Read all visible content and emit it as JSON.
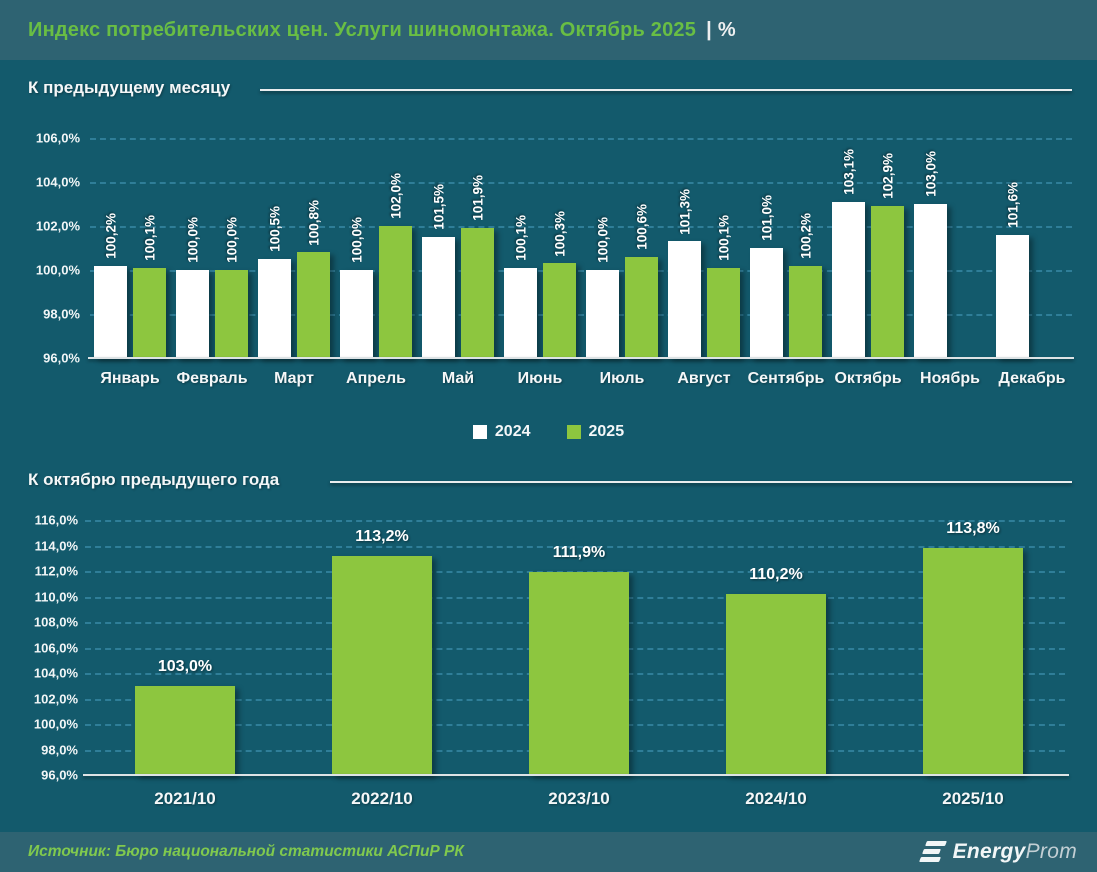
{
  "header": {
    "title": "Индекс потребительских цен. Услуги шиномонтажа. Октябрь 2025",
    "divider": "|",
    "unit": "%"
  },
  "sections": {
    "monthly_title": "К предыдущему месяцу",
    "yearly_title": "К октябрю предыдущего года"
  },
  "legend": [
    {
      "label": "2024",
      "color": "#FFFFFF"
    },
    {
      "label": "2025",
      "color": "#8DC63F"
    }
  ],
  "footer": {
    "source": "Источник: Бюро национальной статистики АСПиР РК",
    "logo_bold": "Energy",
    "logo_light": "Prom"
  },
  "colors": {
    "background": "#135A6C",
    "band": "#2E6372",
    "title_green": "#69BE44",
    "bar_green": "#8DC63F",
    "bar_white": "#FFFFFF",
    "gridline": "#2F7E98",
    "source_green": "#80C94E"
  },
  "chart_data": [
    {
      "type": "bar",
      "title": "К предыдущему месяцу",
      "categories": [
        "Январь",
        "Февраль",
        "Март",
        "Апрель",
        "Май",
        "Июнь",
        "Июль",
        "Август",
        "Сентябрь",
        "Октябрь",
        "Ноябрь",
        "Декабрь"
      ],
      "series": [
        {
          "name": "2024",
          "color": "#FFFFFF",
          "values": [
            100.2,
            100.0,
            100.5,
            100.0,
            101.5,
            100.1,
            100.0,
            101.3,
            101.0,
            103.1,
            103.0,
            101.6
          ],
          "labels": [
            "100,2%",
            "100,0%",
            "100,5%",
            "100,0%",
            "101,5%",
            "100,1%",
            "100,0%",
            "101,3%",
            "101,0%",
            "103,1%",
            "103,0%",
            "101,6%"
          ]
        },
        {
          "name": "2025",
          "color": "#8DC63F",
          "values": [
            100.1,
            100.0,
            100.8,
            102.0,
            101.9,
            100.3,
            100.6,
            100.1,
            100.2,
            102.9,
            null,
            null
          ],
          "labels": [
            "100,1%",
            "100,0%",
            "100,8%",
            "102,0%",
            "101,9%",
            "100,3%",
            "100,6%",
            "100,1%",
            "100,2%",
            "102,9%",
            null,
            null
          ]
        }
      ],
      "ylim": [
        96,
        106
      ],
      "ytick_step": 2,
      "ytick_labels": [
        "96,0%",
        "98,0%",
        "100,0%",
        "102,0%",
        "104,0%",
        "106,0%"
      ],
      "grid": true,
      "legend_position": "bottom",
      "xlabel": "",
      "ylabel": ""
    },
    {
      "type": "bar",
      "title": "К октябрю предыдущего года",
      "categories": [
        "2021/10",
        "2022/10",
        "2023/10",
        "2024/10",
        "2025/10"
      ],
      "values": [
        103.0,
        113.2,
        111.9,
        110.2,
        113.8
      ],
      "value_labels": [
        "103,0%",
        "113,2%",
        "111,9%",
        "110,2%",
        "113,8%"
      ],
      "series_color": "#8DC63F",
      "ylim": [
        96,
        116
      ],
      "ytick_step": 2,
      "ytick_labels": [
        "96,0%",
        "98,0%",
        "100,0%",
        "102,0%",
        "104,0%",
        "106,0%",
        "108,0%",
        "110,0%",
        "112,0%",
        "114,0%",
        "116,0%"
      ],
      "grid": true,
      "legend_position": "none",
      "xlabel": "",
      "ylabel": ""
    }
  ]
}
